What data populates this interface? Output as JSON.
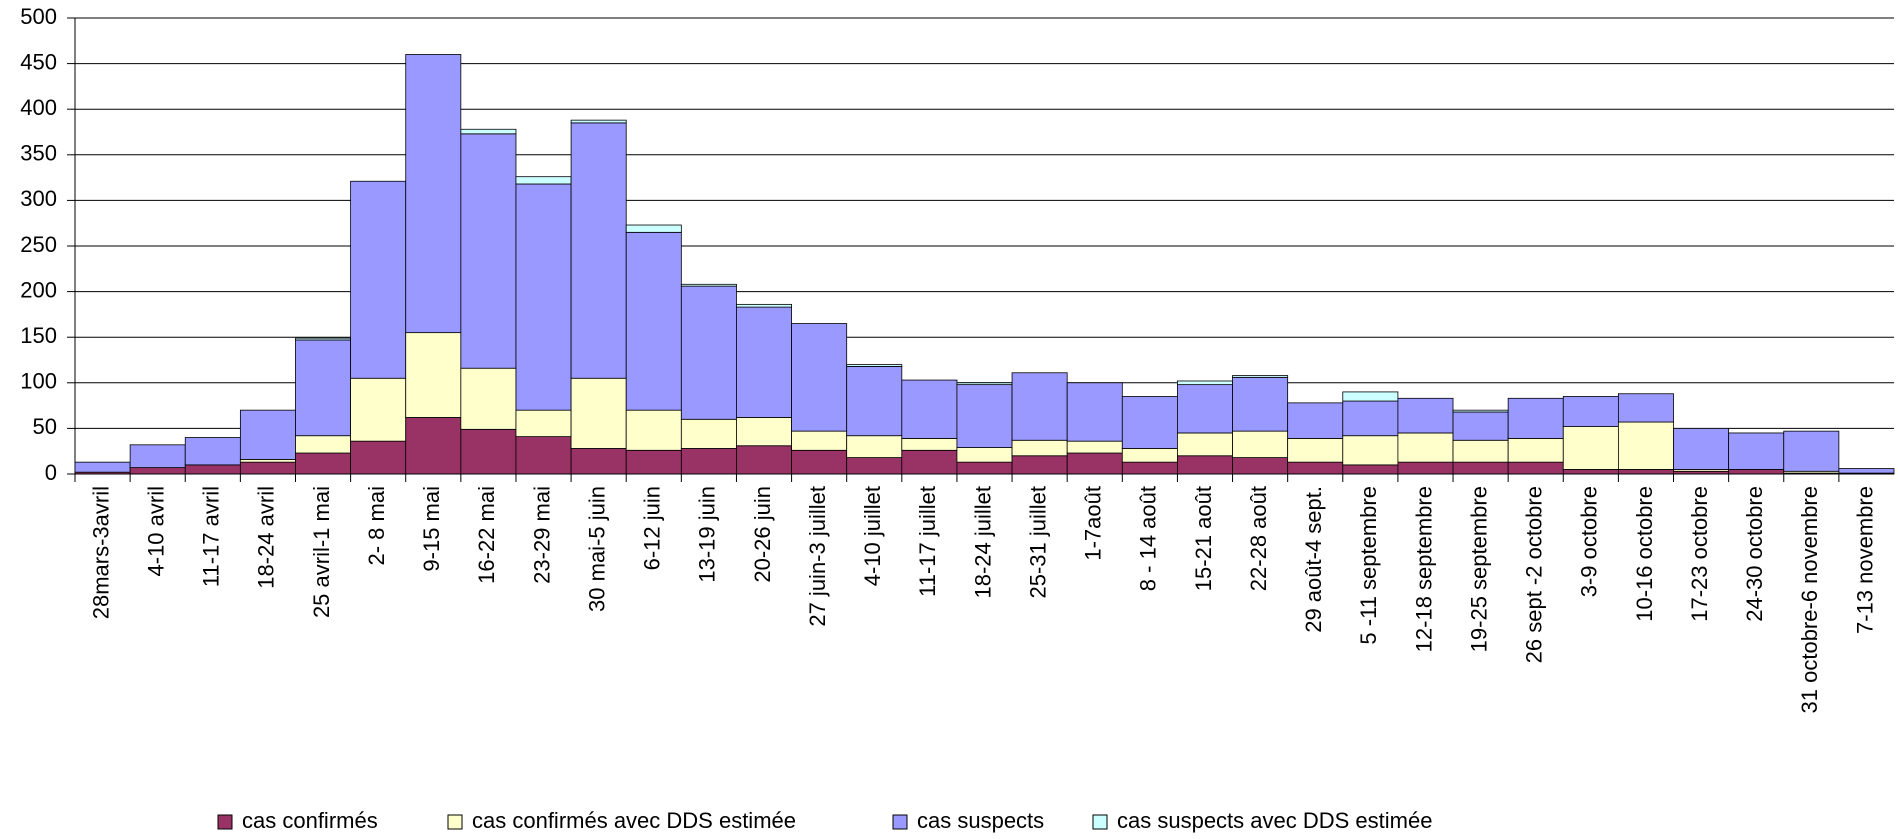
{
  "chart_data": {
    "type": "stacked_bar",
    "categories": [
      "28mars-3avril",
      "4-10 avril",
      "11-17 avril",
      "18-24 avril",
      "25 avril-1 mai",
      "2- 8 mai",
      "9-15 mai",
      "16-22 mai",
      "23-29 mai",
      "30 mai-5 juin",
      "6-12 juin",
      "13-19 juin",
      "20-26 juin",
      "27 juin-3 juillet",
      "4-10 juillet",
      "11-17 juillet",
      "18-24 juillet",
      "25-31 juillet",
      "1-7août",
      "8 - 14 août",
      "15-21 août",
      "22-28 août",
      "29 août-4 sept.",
      "5 -11 septembre",
      "12-18 septembre",
      "19-25 septembre",
      "26 sept -2 octobre",
      "3-9 octobre",
      "10-16 octobre",
      "17-23 octobre",
      "24-30 octobre",
      "31 octobre-6 novembre",
      "7-13 novembre"
    ],
    "series": [
      {
        "name": "cas confirmés",
        "color": "#993366",
        "values": [
          2,
          7,
          10,
          13,
          23,
          36,
          62,
          49,
          41,
          28,
          26,
          28,
          31,
          26,
          18,
          26,
          13,
          20,
          23,
          13,
          20,
          18,
          13,
          10,
          13,
          13,
          13,
          5,
          5,
          3,
          5,
          1,
          1
        ]
      },
      {
        "name": "cas confirmés avec DDS estimée",
        "color": "#ffffcc",
        "values": [
          0,
          0,
          0,
          3,
          19,
          69,
          93,
          67,
          29,
          77,
          44,
          32,
          31,
          21,
          24,
          13,
          16,
          17,
          13,
          15,
          25,
          29,
          26,
          32,
          32,
          24,
          26,
          47,
          52,
          2,
          0,
          2,
          0
        ]
      },
      {
        "name": "cas suspects",
        "color": "#9999ff",
        "values": [
          11,
          25,
          30,
          54,
          105,
          216,
          305,
          257,
          248,
          280,
          195,
          146,
          121,
          118,
          76,
          64,
          69,
          74,
          64,
          57,
          53,
          59,
          39,
          38,
          38,
          31,
          44,
          33,
          31,
          45,
          40,
          44,
          5
        ]
      },
      {
        "name": "cas suspects avec DDS estimée",
        "color": "#ccffff",
        "values": [
          0,
          0,
          0,
          0,
          2,
          0,
          0,
          5,
          8,
          3,
          8,
          2,
          3,
          0,
          2,
          0,
          2,
          0,
          0,
          0,
          4,
          2,
          0,
          10,
          0,
          2,
          0,
          0,
          0,
          0,
          0,
          0,
          0
        ]
      }
    ],
    "ylim": [
      0,
      500
    ],
    "yticks": [
      0,
      50,
      100,
      150,
      200,
      250,
      300,
      350,
      400,
      450,
      500
    ],
    "grid": true,
    "legend": "bottom"
  }
}
